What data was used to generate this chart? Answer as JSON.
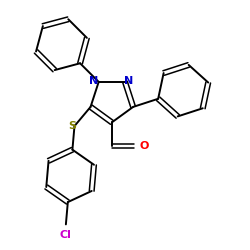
{
  "bg_color": "#ffffff",
  "bond_color": "#000000",
  "N_color": "#0000cc",
  "O_color": "#ff0000",
  "S_color": "#808000",
  "Cl_color": "#cc00cc",
  "figsize": [
    2.5,
    2.5
  ],
  "dpi": 100,
  "xlim": [
    -3.5,
    5.5
  ],
  "ylim": [
    -5.5,
    4.0
  ]
}
